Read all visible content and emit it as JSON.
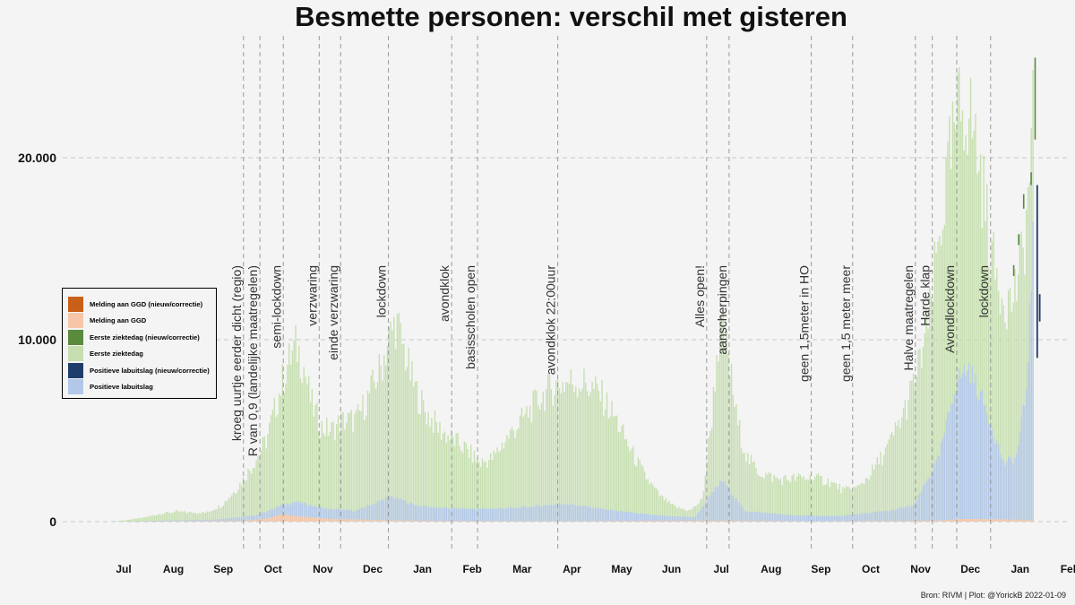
{
  "chart_data": {
    "type": "bar",
    "stacked": true,
    "title": "Besmette personen: verschil met gisteren",
    "xlabel": "",
    "ylabel": "",
    "ylim": [
      0,
      26000
    ],
    "y_ticks": [
      {
        "value": 0,
        "label": "0"
      },
      {
        "value": 10000,
        "label": "10.000"
      },
      {
        "value": 20000,
        "label": "20.000"
      }
    ],
    "grid": true,
    "x_ticks": [
      "Jul",
      "Aug",
      "Sep",
      "Oct",
      "Nov",
      "Dec",
      "Jan",
      "Feb",
      "Mar",
      "Apr",
      "May",
      "Jun",
      "Jul",
      "Aug",
      "Sep",
      "Oct",
      "Nov",
      "Dec",
      "Jan",
      "Feb"
    ],
    "legend_position": "left",
    "legend": [
      {
        "label": "Melding aan GGD (nieuw/correctie)",
        "color": "#c8601a"
      },
      {
        "label": "Melding aan GGD",
        "color": "#f5c7a8"
      },
      {
        "label": "Eerste ziektedag (nieuw/correctie)",
        "color": "#5a8a3c"
      },
      {
        "label": "Eerste ziektedag",
        "color": "#c6dfb0"
      },
      {
        "label": "Positieve labuitslag (nieuw/correctie)",
        "color": "#1f3d6b"
      },
      {
        "label": "Positieve labuitslag",
        "color": "#b3c8e8"
      }
    ],
    "x_unit": "months since 1 Jul 2020",
    "series": [
      {
        "name": "Eerste ziektedag",
        "color": "#c6dfb0",
        "points": [
          [
            0,
            30
          ],
          [
            0.5,
            200
          ],
          [
            0.9,
            450
          ],
          [
            1.2,
            550
          ],
          [
            1.5,
            500
          ],
          [
            1.8,
            500
          ],
          [
            2.1,
            900
          ],
          [
            2.4,
            1800
          ],
          [
            2.7,
            3000
          ],
          [
            3.0,
            4500
          ],
          [
            3.2,
            6500
          ],
          [
            3.4,
            8500
          ],
          [
            3.6,
            9700
          ],
          [
            3.75,
            8500
          ],
          [
            3.9,
            6500
          ],
          [
            4.1,
            5200
          ],
          [
            4.3,
            5000
          ],
          [
            4.5,
            5500
          ],
          [
            4.8,
            5600
          ],
          [
            5.0,
            6600
          ],
          [
            5.3,
            8500
          ],
          [
            5.45,
            10000
          ],
          [
            5.6,
            11000
          ],
          [
            5.75,
            9500
          ],
          [
            5.95,
            7500
          ],
          [
            6.2,
            6000
          ],
          [
            6.5,
            5000
          ],
          [
            6.8,
            4400
          ],
          [
            7.0,
            4000
          ],
          [
            7.3,
            3200
          ],
          [
            7.55,
            3500
          ],
          [
            7.8,
            4500
          ],
          [
            8.1,
            5500
          ],
          [
            8.5,
            6800
          ],
          [
            8.8,
            7500
          ],
          [
            9.1,
            7700
          ],
          [
            9.4,
            7600
          ],
          [
            9.7,
            7000
          ],
          [
            10.0,
            5700
          ],
          [
            10.3,
            4000
          ],
          [
            10.6,
            2500
          ],
          [
            10.9,
            1400
          ],
          [
            11.2,
            800
          ],
          [
            11.5,
            600
          ],
          [
            11.75,
            1200
          ],
          [
            11.95,
            6000
          ],
          [
            12.05,
            9500
          ],
          [
            12.15,
            10800
          ],
          [
            12.3,
            8500
          ],
          [
            12.45,
            5500
          ],
          [
            12.65,
            3500
          ],
          [
            12.9,
            2700
          ],
          [
            13.3,
            2300
          ],
          [
            13.7,
            2400
          ],
          [
            14.0,
            2400
          ],
          [
            14.3,
            2200
          ],
          [
            14.6,
            1700
          ],
          [
            14.9,
            1900
          ],
          [
            15.2,
            2900
          ],
          [
            15.5,
            4200
          ],
          [
            15.8,
            6000
          ],
          [
            16.05,
            8000
          ],
          [
            16.3,
            11000
          ],
          [
            16.5,
            15500
          ],
          [
            16.7,
            19500
          ],
          [
            16.9,
            22500
          ],
          [
            17.05,
            23000
          ],
          [
            17.2,
            21500
          ],
          [
            17.4,
            18000
          ],
          [
            17.6,
            14000
          ],
          [
            17.8,
            12500
          ],
          [
            17.95,
            12000
          ],
          [
            18.1,
            13500
          ],
          [
            18.2,
            15000
          ],
          [
            18.3,
            18000
          ],
          [
            18.4,
            23000
          ],
          [
            18.48,
            25000
          ],
          [
            18.55,
            14000
          ],
          [
            18.6,
            2000
          ],
          [
            18.65,
            500
          ]
        ]
      },
      {
        "name": "Positieve labuitslag",
        "color": "#b3c8e8",
        "points": [
          [
            0,
            0
          ],
          [
            1,
            60
          ],
          [
            2,
            120
          ],
          [
            2.8,
            350
          ],
          [
            3.3,
            900
          ],
          [
            3.6,
            1100
          ],
          [
            4.2,
            700
          ],
          [
            4.8,
            600
          ],
          [
            5.5,
            1400
          ],
          [
            6.0,
            900
          ],
          [
            6.5,
            750
          ],
          [
            7.2,
            700
          ],
          [
            8.0,
            750
          ],
          [
            9.0,
            1000
          ],
          [
            10.0,
            600
          ],
          [
            10.8,
            350
          ],
          [
            11.6,
            250
          ],
          [
            12.15,
            2300
          ],
          [
            12.6,
            600
          ],
          [
            13.5,
            350
          ],
          [
            14.5,
            300
          ],
          [
            15.5,
            600
          ],
          [
            16.0,
            900
          ],
          [
            16.5,
            3500
          ],
          [
            16.85,
            7800
          ],
          [
            17.1,
            8500
          ],
          [
            17.45,
            6200
          ],
          [
            17.8,
            3200
          ],
          [
            18.05,
            3500
          ],
          [
            18.25,
            7000
          ],
          [
            18.4,
            16000
          ],
          [
            18.48,
            18000
          ],
          [
            18.53,
            13000
          ],
          [
            18.6,
            500
          ]
        ]
      },
      {
        "name": "Melding aan GGD",
        "color": "#f5c7a8",
        "points": [
          [
            0,
            0
          ],
          [
            2.5,
            40
          ],
          [
            3.0,
            170
          ],
          [
            3.3,
            400
          ],
          [
            3.6,
            300
          ],
          [
            4.3,
            150
          ],
          [
            5.5,
            80
          ],
          [
            6.5,
            30
          ],
          [
            9.0,
            20
          ],
          [
            12.15,
            60
          ],
          [
            14.0,
            10
          ],
          [
            16.5,
            60
          ],
          [
            17.0,
            150
          ],
          [
            18.4,
            100
          ],
          [
            18.6,
            0
          ]
        ]
      },
      {
        "name": "Melding aan GGD (nieuw/correctie)",
        "color": "#c8601a",
        "points": [
          [
            18.44,
            0
          ],
          [
            18.47,
            150
          ],
          [
            18.52,
            350
          ],
          [
            18.55,
            0
          ]
        ]
      }
    ],
    "annotations": [
      {
        "label": "kroeg uurtje eerder dicht (regio)",
        "x": 2.55
      },
      {
        "label": "R van 0,9 (landelijke maatregelen)",
        "x": 2.88
      },
      {
        "label": "semi-lockdown",
        "x": 3.35
      },
      {
        "label": "verzwaring",
        "x": 4.07
      },
      {
        "label": "einde verzwaring",
        "x": 4.5
      },
      {
        "label": "lockdown",
        "x": 5.46
      },
      {
        "label": "avondklok",
        "x": 6.73
      },
      {
        "label": "basisscholen open",
        "x": 7.25
      },
      {
        "label": "avondklok 22:00uur",
        "x": 8.86
      },
      {
        "label": "Alles open!",
        "x": 11.85
      },
      {
        "label": "aanscherpingen",
        "x": 12.3
      },
      {
        "label": "geen 1,5meter in HO",
        "x": 13.95
      },
      {
        "label": "geen 1,5 meter meer",
        "x": 14.78
      },
      {
        "label": "Halve maatregelen",
        "x": 16.04
      },
      {
        "label": "Harde klap",
        "x": 16.38
      },
      {
        "label": "Avondlockdown",
        "x": 16.87
      },
      {
        "label": "lockdown",
        "x": 17.55
      }
    ]
  },
  "source_note": "Bron: RIVM | Plot: @YorickB  2022-01-09"
}
